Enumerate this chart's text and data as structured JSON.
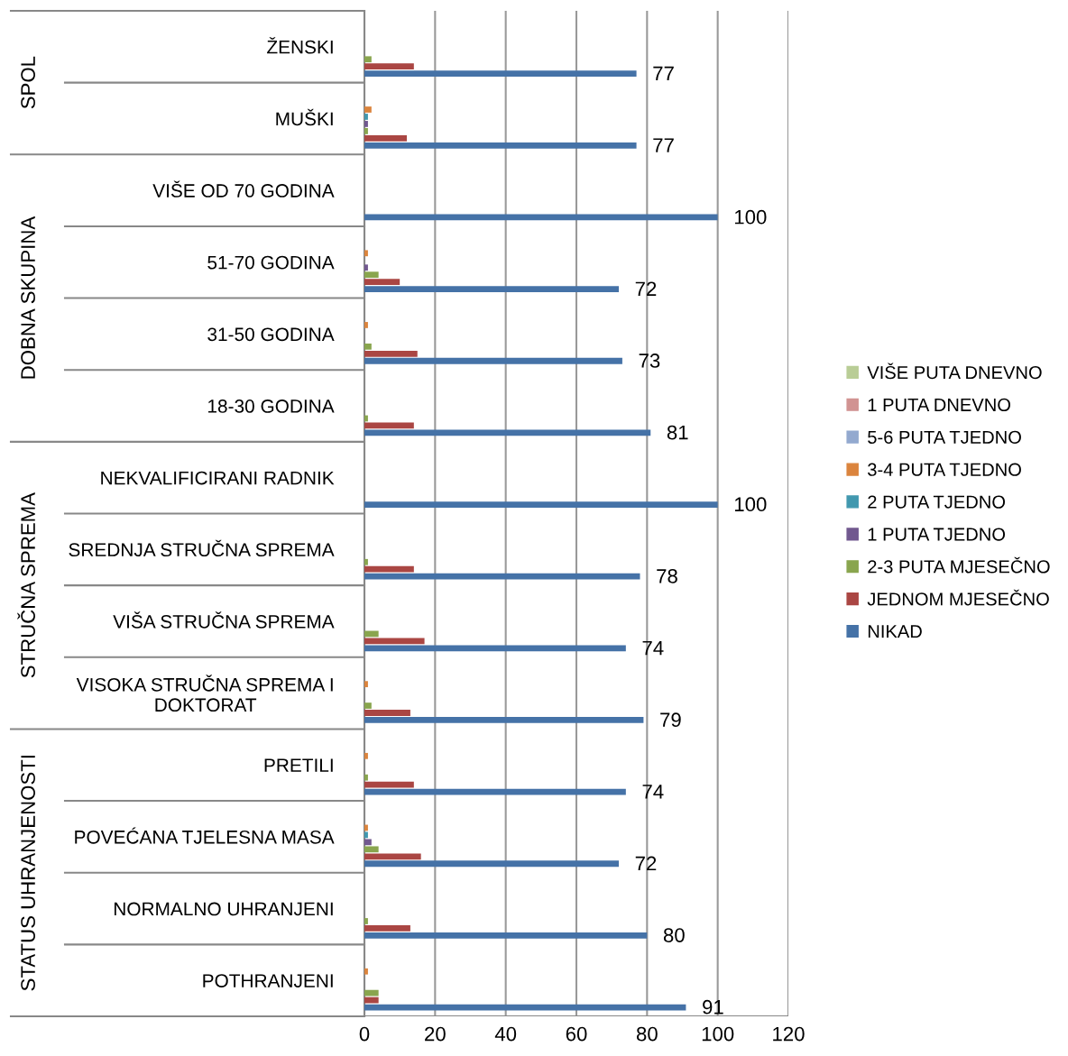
{
  "chart_data": {
    "type": "bar",
    "orientation": "horizontal",
    "categories": [
      "ŽENSKI",
      "MUŠKI",
      "VIŠE OD 70 GODINA",
      "51-70 GODINA",
      "31-50 GODINA",
      "18-30 GODINA",
      "NEKVALIFICIRANI RADNIK",
      "SREDNJA STRUČNA SPREMA",
      "VIŠA STRUČNA SPREMA",
      "VISOKA STRUČNA SPREMA I DOKTORAT",
      "PRETILI",
      "POVEĆANA TJELESNA MASA",
      "NORMALNO UHRANJENI",
      "POTHRANJENI"
    ],
    "series": [
      {
        "name": "NIKAD",
        "color": "#4572a7",
        "values": [
          77,
          77,
          100,
          72,
          73,
          81,
          100,
          78,
          74,
          79,
          74,
          72,
          80,
          91
        ],
        "value_labels": [
          "77",
          "77",
          "100",
          "72",
          "73",
          "81",
          "100",
          "78",
          "74",
          "79",
          "74",
          "72",
          "80",
          "91"
        ]
      },
      {
        "name": "JEDNOM MJESEČNO",
        "color": "#aa4643",
        "values": [
          14,
          12,
          0,
          10,
          15,
          14,
          0,
          14,
          17,
          13,
          14,
          16,
          13,
          4
        ]
      },
      {
        "name": "2-3 PUTA MJESEČNO",
        "color": "#89a54e",
        "values": [
          2,
          1,
          0,
          4,
          2,
          1,
          0,
          1,
          4,
          2,
          1,
          4,
          1,
          4
        ]
      },
      {
        "name": "1 PUTA TJEDNO",
        "color": "#71588f",
        "values": [
          0,
          1,
          0,
          1,
          0,
          0,
          0,
          0,
          0,
          0,
          0,
          2,
          0,
          0
        ]
      },
      {
        "name": "2 PUTA TJEDNO",
        "color": "#4198af",
        "values": [
          0,
          1,
          0,
          0,
          0,
          0,
          0,
          0,
          0,
          0,
          0,
          1,
          0,
          0
        ]
      },
      {
        "name": "3-4 PUTA TJEDNO",
        "color": "#db843d",
        "values": [
          0,
          2,
          0,
          1,
          1,
          0,
          0,
          0,
          0,
          1,
          1,
          1,
          0,
          1
        ]
      },
      {
        "name": "5-6 PUTA TJEDNO",
        "color": "#93a9cf",
        "values": [
          0,
          0,
          0,
          0,
          0,
          0,
          0,
          0,
          0,
          0,
          0,
          0,
          0,
          0
        ]
      },
      {
        "name": "1 PUTA DNEVNO",
        "color": "#d19392",
        "values": [
          0,
          0,
          0,
          0,
          0,
          0,
          0,
          0,
          0,
          0,
          0,
          0,
          0,
          0
        ]
      },
      {
        "name": "VIŠE PUTA DNEVNO",
        "color": "#b9cd96",
        "values": [
          0,
          0,
          0,
          0,
          0,
          0,
          0,
          0,
          0,
          0,
          0,
          0,
          0,
          0
        ]
      }
    ],
    "annotations": [
      "SPOL",
      "DOBNA SKUPINA",
      "STRUČNA SPREMA",
      "STATUS UHRANJENOSTI"
    ],
    "xlim": [
      0,
      120
    ],
    "xticks": [
      0,
      20,
      40,
      60,
      80,
      100,
      120
    ],
    "grid": "x",
    "legend": "right"
  }
}
